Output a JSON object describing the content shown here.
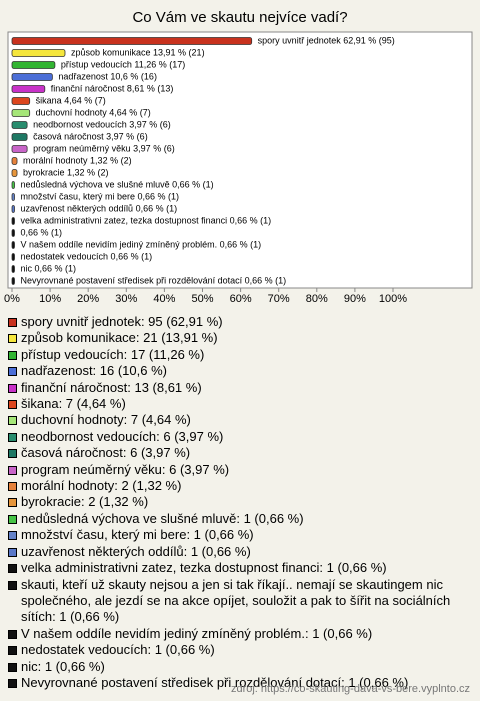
{
  "chart_data": {
    "type": "bar",
    "orientation": "horizontal",
    "title": "Co Vám ve skautu nejvíce vadí?",
    "categories": [
      "spory uvnitř jednotek 62,91 % (95)",
      "způsob komunikace 13,91 % (21)",
      "přístup vedoucích 11,26 % (17)",
      "nadřazenost 10,6 % (16)",
      "finanční náročnost 8,61 % (13)",
      "šikana 4,64 % (7)",
      "duchovní hodnoty 4,64 % (7)",
      "neodbornost vedoucích 3,97 % (6)",
      "časová náročnost 3,97 % (6)",
      "program neúměrný věku 3,97 % (6)",
      "morální hodnoty 1,32 % (2)",
      "byrokracie 1,32 % (2)",
      "nedůsledná výchova ve slušné mluvě 0,66 % (1)",
      "množství času, který mi bere 0,66 % (1)",
      "uzavřenost některých oddílů 0,66 % (1)",
      "velka administrativni zatez, tezka dostupnost financi 0,66 % (1)",
      "0,66 % (1)",
      "V našem oddíle nevidím jediný zmíněný problém. 0,66 % (1)",
      "nedostatek vedoucích 0,66 % (1)",
      "nic 0,66 % (1)",
      "Nevyrovnané postavení středisek při rozdělování dotací 0,66 % (1)"
    ],
    "values": [
      62.91,
      13.91,
      11.26,
      10.6,
      8.61,
      4.64,
      4.64,
      3.97,
      3.97,
      3.97,
      1.32,
      1.32,
      0.66,
      0.66,
      0.66,
      0.66,
      0.66,
      0.66,
      0.66,
      0.66,
      0.66
    ],
    "colors": [
      "#c8321e",
      "#f5e63c",
      "#32b432",
      "#4b6ed7",
      "#c832c8",
      "#dc461e",
      "#a5e678",
      "#288c6e",
      "#1e7864",
      "#c864c8",
      "#e6823c",
      "#e6963c",
      "#46c346",
      "#6482c8",
      "#5a78c8",
      "#111111",
      "#111111",
      "#111111",
      "#111111",
      "#111111",
      "#111111"
    ],
    "legend": [
      "spory uvnitř jednotek: 95 (62,91 %)",
      "způsob komunikace: 21 (13,91 %)",
      "přístup vedoucích: 17 (11,26 %)",
      "nadřazenost: 16 (10,6 %)",
      "finanční náročnost: 13 (8,61 %)",
      "šikana: 7 (4,64 %)",
      "duchovní hodnoty: 7 (4,64 %)",
      "neodbornost vedoucích: 6 (3,97 %)",
      "časová náročnost: 6 (3,97 %)",
      "program neúměrný věku: 6 (3,97 %)",
      "morální hodnoty: 2 (1,32 %)",
      "byrokracie: 2 (1,32 %)",
      "nedůsledná výchova ve slušné mluvě: 1 (0,66 %)",
      "množství času, který mi bere: 1 (0,66 %)",
      "uzavřenost některých oddílů: 1 (0,66 %)",
      "velka administrativni zatez, tezka dostupnost financi: 1 (0,66 %)",
      "skauti, kteří už skauty nejsou a jen si tak říkají.. nemají se skautingem nic společného, ale jezdí se na akce opíjet, souložit a pak to šířit na sociálních sítích: 1 (0,66 %)",
      "V našem oddíle nevidím jediný zmíněný problém.: 1 (0,66 %)",
      "nedostatek vedoucích: 1 (0,66 %)",
      "nic: 1 (0,66 %)",
      "Nevyrovnané postavení středisek při rozdělování dotací: 1 (0,66 %)"
    ],
    "xlim": [
      0,
      100
    ],
    "xticks": [
      {
        "value": 0,
        "label": "0%"
      },
      {
        "value": 10,
        "label": "10%"
      },
      {
        "value": 20,
        "label": "20%"
      },
      {
        "value": 30,
        "label": "30%"
      },
      {
        "value": 40,
        "label": "40%"
      },
      {
        "value": 50,
        "label": "50%"
      },
      {
        "value": 60,
        "label": "60%"
      },
      {
        "value": 70,
        "label": "70%"
      },
      {
        "value": 80,
        "label": "80%"
      },
      {
        "value": 90,
        "label": "90%"
      },
      {
        "value": 100,
        "label": "100%"
      }
    ],
    "source": "zdroj: https://co-skauting-dava-vs-bere.vyplnto.cz"
  }
}
